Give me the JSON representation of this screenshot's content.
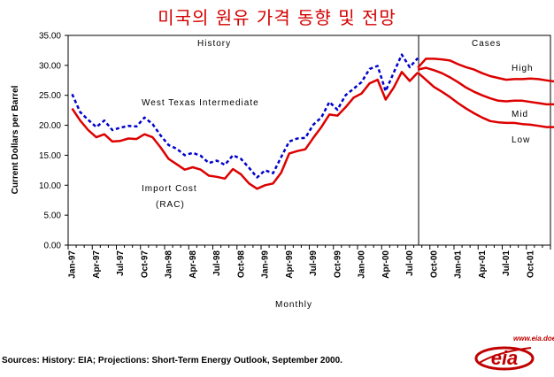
{
  "title": "미국의 원유 가격 동향 및 전망",
  "source_note": "Sources: History:  EIA;  Projections: Short-Term Energy Outlook, September 2000.",
  "logo": {
    "text": "eia",
    "url": "www.eia.doe.gov",
    "color": "#c00000"
  },
  "chart_data": {
    "type": "line",
    "xlabel": "Monthly",
    "ylabel": "Current Dollars per Barrel",
    "ylim": [
      0,
      35
    ],
    "yticks": [
      "0.00",
      "5.00",
      "10.00",
      "15.00",
      "20.00",
      "25.00",
      "30.00",
      "35.00"
    ],
    "xticks": [
      "Jan-97",
      "Apr-97",
      "Jul-97",
      "Oct-97",
      "Jan-98",
      "Apr-98",
      "Jul-98",
      "Oct-98",
      "Jan-99",
      "Apr-99",
      "Jul-99",
      "Oct-99",
      "Jan-00",
      "Apr-00",
      "Jul-00",
      "Oct-00",
      "Jan-01",
      "Apr-01",
      "Jul-01",
      "Oct-01"
    ],
    "grid": false,
    "annotations": {
      "history": "History",
      "cases": "Cases",
      "wti": "West Texas Intermediate",
      "import_cost_1": "Import Cost",
      "import_cost_2": "(RAC)",
      "high": "High",
      "mid": "Mid",
      "low": "Low"
    },
    "series": [
      {
        "name": "West Texas Intermediate",
        "color": "#0000cc",
        "style": "dashed",
        "start": "1997-01",
        "values": [
          25.2,
          22.2,
          20.9,
          19.7,
          20.8,
          19.2,
          19.6,
          19.9,
          19.8,
          21.3,
          20.2,
          18.3,
          16.7,
          16.1,
          15.0,
          15.4,
          14.9,
          13.7,
          14.1,
          13.4,
          15.0,
          14.4,
          12.9,
          11.3,
          12.5,
          12.0,
          14.7,
          17.3,
          17.8,
          17.9,
          20.1,
          21.3,
          23.9,
          22.6,
          25.0,
          26.1,
          27.2,
          29.4,
          29.9,
          25.7,
          28.8,
          31.8,
          29.7,
          31.2
        ]
      },
      {
        "name": "Import Cost (RAC)",
        "color": "#dd0000",
        "style": "solid",
        "start": "1997-01",
        "values": [
          22.8,
          20.8,
          19.2,
          18.0,
          18.5,
          17.3,
          17.4,
          17.8,
          17.7,
          18.5,
          18.0,
          16.3,
          14.4,
          13.5,
          12.6,
          13.0,
          12.6,
          11.6,
          11.4,
          11.1,
          12.7,
          11.8,
          10.3,
          9.4,
          10.0,
          10.3,
          12.1,
          15.3,
          15.7,
          16.0,
          17.9,
          19.7,
          21.8,
          21.6,
          23.0,
          24.6,
          25.3,
          27.0,
          27.6,
          24.3,
          26.3,
          28.9,
          27.4,
          28.8
        ]
      },
      {
        "name": "High",
        "color": "#dd0000",
        "style": "solid",
        "start": "2000-08",
        "values": [
          29.6,
          31.1,
          31.1,
          31.0,
          30.8,
          30.2,
          29.7,
          29.3,
          28.7,
          28.2,
          27.9,
          27.6,
          27.7,
          27.7,
          27.8,
          27.7,
          27.5,
          27.3,
          27.4,
          27.5
        ]
      },
      {
        "name": "Mid",
        "color": "#dd0000",
        "style": "solid",
        "start": "2000-08",
        "values": [
          29.3,
          29.6,
          29.2,
          28.7,
          28.0,
          27.2,
          26.3,
          25.6,
          25.0,
          24.5,
          24.1,
          24.0,
          24.1,
          24.1,
          23.9,
          23.7,
          23.5,
          23.5,
          23.5,
          23.6
        ]
      },
      {
        "name": "Low",
        "color": "#dd0000",
        "style": "solid",
        "start": "2000-08",
        "values": [
          28.8,
          27.6,
          26.4,
          25.6,
          24.7,
          23.7,
          22.8,
          22.0,
          21.3,
          20.7,
          20.5,
          20.4,
          20.4,
          20.2,
          20.1,
          19.9,
          19.7,
          19.7,
          19.8,
          19.8
        ]
      }
    ]
  }
}
